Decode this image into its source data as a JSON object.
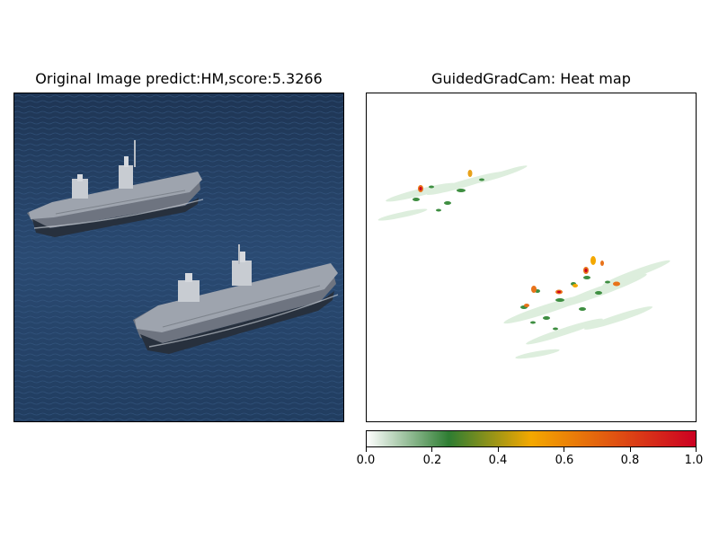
{
  "chart_data": [
    {
      "type": "image",
      "title": "Original Image predict:HM,score:5.3266",
      "content": "aerial photo of two aircraft carriers on dark blue sea"
    },
    {
      "type": "heatmap",
      "title": "GuidedGradCam: Heat map",
      "colorbar": {
        "ticks": [
          0.0,
          0.2,
          0.4,
          0.6,
          0.8,
          1.0
        ],
        "tick_labels": [
          "0.0",
          "0.2",
          "0.4",
          "0.6",
          "0.8",
          "1.0"
        ],
        "range": [
          0,
          1
        ],
        "colors": [
          "#ffffff",
          "#2e7d32",
          "#f4a800",
          "#cc0022"
        ]
      }
    }
  ]
}
